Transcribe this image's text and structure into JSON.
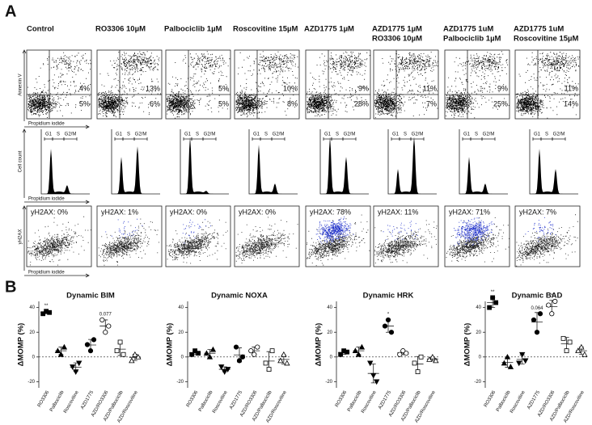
{
  "panel_a": {
    "label": "A",
    "columns": [
      {
        "title": [
          "Control"
        ],
        "annexin": [
          "4%",
          "5%"
        ],
        "h2ax": "yH2AX: 0%"
      },
      {
        "title": [
          "RO3306 10µM"
        ],
        "annexin": [
          "13%",
          "6%"
        ],
        "h2ax": "yH2AX: 1%"
      },
      {
        "title": [
          "Palbociclib 1µM"
        ],
        "annexin": [
          "5%",
          "5%"
        ],
        "h2ax": "yH2AX: 0%"
      },
      {
        "title": [
          "Roscovitine 15µM"
        ],
        "annexin": [
          "10%",
          "8%"
        ],
        "h2ax": "yH2AX: 0%"
      },
      {
        "title": [
          "AZD1775 1µM"
        ],
        "annexin": [
          "9%",
          "28%"
        ],
        "h2ax": "yH2AX: 78%"
      },
      {
        "title": [
          "AZD1775 1µM",
          "RO3306 10µM"
        ],
        "annexin": [
          "11%",
          "7%"
        ],
        "h2ax": "yH2AX: 11%"
      },
      {
        "title": [
          "AZD1775 1uM",
          "Palbociclib 1µM"
        ],
        "annexin": [
          "9%",
          "25%"
        ],
        "h2ax": "yH2AX: 71%"
      },
      {
        "title": [
          "AZD1775 1uM",
          "Roscovitine 15µM"
        ],
        "annexin": [
          "11%",
          "14%"
        ],
        "h2ax": "yH2AX: 7%"
      }
    ],
    "row_labels": {
      "annexin_y": "Annexin V",
      "count_y": "Cell count",
      "h2ax_y": "yH2AX",
      "x": "Propidium iodide"
    },
    "phases": [
      "G1",
      "S",
      "G2/M"
    ]
  },
  "panel_b_label": "B",
  "chart_data": [
    {
      "type": "dotplot",
      "title": "Dynamic BIM",
      "ylabel": "ΔMOMP (%)",
      "categories": [
        "RO3306",
        "Palbociclib",
        "Roscovitine",
        "AZD1775",
        "AZD/RO3306",
        "AZD/Palbociclib",
        "AZD/Roscovitine"
      ],
      "values": [
        [
          35,
          37,
          36
        ],
        [
          5,
          2,
          8
        ],
        [
          -8,
          -12,
          -5
        ],
        [
          10,
          5,
          14
        ],
        [
          30,
          20,
          25
        ],
        [
          5,
          12,
          2
        ],
        [
          -3,
          2,
          0
        ]
      ],
      "ylim": [
        -25,
        45
      ],
      "yticks": [
        -20,
        0,
        20,
        40
      ],
      "annotations": [
        {
          "category": "RO3306",
          "text": "**"
        },
        {
          "category": "AZD/RO3306",
          "text": "0.077"
        }
      ]
    },
    {
      "type": "dotplot",
      "title": "Dynamic NOXA",
      "ylabel": "ΔMOMP (%)",
      "categories": [
        "RO3306",
        "Palbociclib",
        "Roscovitine",
        "AZD1775",
        "AZD/RO3306",
        "AZD/Palbociclib",
        "AZD/Roscovitine"
      ],
      "values": [
        [
          2,
          5,
          3
        ],
        [
          3,
          0,
          6
        ],
        [
          -8,
          -12,
          -10
        ],
        [
          8,
          -3,
          0
        ],
        [
          5,
          2,
          8
        ],
        [
          -5,
          -10,
          5
        ],
        [
          -3,
          2,
          -5
        ]
      ],
      "ylim": [
        -25,
        45
      ],
      "yticks": [
        -20,
        0,
        20,
        40
      ],
      "annotations": []
    },
    {
      "type": "dotplot",
      "title": "Dynamic HRK",
      "ylabel": "ΔMOMP (%)",
      "categories": [
        "RO3306",
        "Palbociclib",
        "Roscovitine",
        "AZD1775",
        "AZD/RO3306",
        "AZD/Palbociclib",
        "AZD/Roscovitine"
      ],
      "values": [
        [
          2,
          5,
          4
        ],
        [
          5,
          2,
          8
        ],
        [
          -5,
          -15,
          -20
        ],
        [
          25,
          30,
          20
        ],
        [
          2,
          5,
          3
        ],
        [
          -5,
          -12,
          0
        ],
        [
          -2,
          0,
          -3
        ]
      ],
      "ylim": [
        -25,
        45
      ],
      "yticks": [
        -20,
        0,
        20,
        40
      ],
      "annotations": [
        {
          "category": "AZD1775",
          "text": "*"
        }
      ]
    },
    {
      "type": "dotplot",
      "title": "Dynamic BAD",
      "ylabel": "ΔMOMP (%)",
      "categories": [
        "RO3306",
        "Palbociclib",
        "Roscovitine",
        "AZD1775",
        "AZD/RO3306",
        "AZD/Palbociclib",
        "AZD/Roscovitine"
      ],
      "values": [
        [
          40,
          48,
          44
        ],
        [
          -5,
          0,
          -8
        ],
        [
          -5,
          2,
          -3
        ],
        [
          30,
          20,
          35
        ],
        [
          42,
          35,
          45
        ],
        [
          15,
          5,
          12
        ],
        [
          5,
          8,
          2
        ]
      ],
      "ylim": [
        -25,
        45
      ],
      "yticks": [
        -20,
        0,
        20,
        40
      ],
      "annotations": [
        {
          "category": "RO3306",
          "text": "**"
        },
        {
          "category": "AZD1775",
          "text": "0.064"
        },
        {
          "category": "AZD/RO3306",
          "text": "*"
        }
      ]
    }
  ]
}
